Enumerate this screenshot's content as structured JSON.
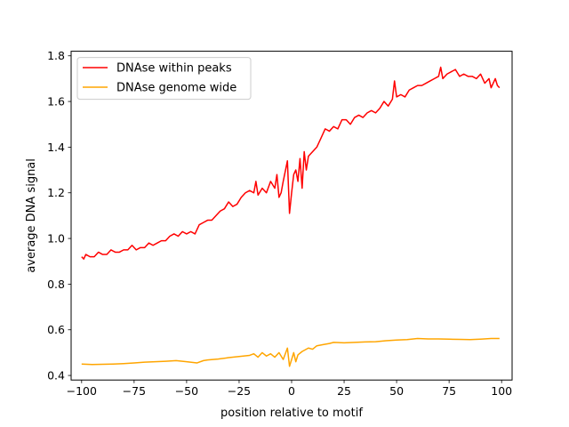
{
  "chart_data": {
    "type": "line",
    "title": "",
    "xlabel": "position relative to motif",
    "ylabel": "average DNA signal",
    "xlim": [
      -105,
      105
    ],
    "ylim": [
      0.38,
      1.82
    ],
    "xticks": [
      -100,
      -75,
      -50,
      -25,
      0,
      25,
      50,
      75,
      100
    ],
    "xtick_labels": [
      "−100",
      "−75",
      "−50",
      "−25",
      "0",
      "25",
      "50",
      "75",
      "100"
    ],
    "yticks": [
      0.4,
      0.6,
      0.8,
      1.0,
      1.2,
      1.4,
      1.6,
      1.8
    ],
    "ytick_labels": [
      "0.4",
      "0.6",
      "0.8",
      "1.0",
      "1.2",
      "1.4",
      "1.6",
      "1.8"
    ],
    "grid": false,
    "legend_position": "top-left",
    "series": [
      {
        "name": "DNAse within peaks",
        "color": "#ff0000",
        "points": [
          [
            -100,
            0.92
          ],
          [
            -99,
            0.91
          ],
          [
            -98,
            0.93
          ],
          [
            -96,
            0.92
          ],
          [
            -94,
            0.92
          ],
          [
            -92,
            0.94
          ],
          [
            -90,
            0.93
          ],
          [
            -88,
            0.93
          ],
          [
            -86,
            0.95
          ],
          [
            -84,
            0.94
          ],
          [
            -82,
            0.94
          ],
          [
            -80,
            0.95
          ],
          [
            -78,
            0.95
          ],
          [
            -76,
            0.97
          ],
          [
            -74,
            0.95
          ],
          [
            -72,
            0.96
          ],
          [
            -70,
            0.96
          ],
          [
            -68,
            0.98
          ],
          [
            -66,
            0.97
          ],
          [
            -64,
            0.98
          ],
          [
            -62,
            0.99
          ],
          [
            -60,
            0.99
          ],
          [
            -58,
            1.01
          ],
          [
            -56,
            1.02
          ],
          [
            -54,
            1.01
          ],
          [
            -52,
            1.03
          ],
          [
            -50,
            1.02
          ],
          [
            -48,
            1.03
          ],
          [
            -46,
            1.02
          ],
          [
            -44,
            1.06
          ],
          [
            -42,
            1.07
          ],
          [
            -40,
            1.08
          ],
          [
            -38,
            1.08
          ],
          [
            -36,
            1.1
          ],
          [
            -34,
            1.12
          ],
          [
            -32,
            1.13
          ],
          [
            -30,
            1.16
          ],
          [
            -28,
            1.14
          ],
          [
            -26,
            1.15
          ],
          [
            -24,
            1.18
          ],
          [
            -22,
            1.2
          ],
          [
            -20,
            1.21
          ],
          [
            -18,
            1.2
          ],
          [
            -17,
            1.25
          ],
          [
            -16,
            1.19
          ],
          [
            -14,
            1.22
          ],
          [
            -12,
            1.2
          ],
          [
            -10,
            1.25
          ],
          [
            -8,
            1.22
          ],
          [
            -7,
            1.28
          ],
          [
            -6,
            1.18
          ],
          [
            -5,
            1.2
          ],
          [
            -4,
            1.25
          ],
          [
            -2,
            1.34
          ],
          [
            -1,
            1.11
          ],
          [
            0,
            1.2
          ],
          [
            1,
            1.28
          ],
          [
            2,
            1.3
          ],
          [
            3,
            1.25
          ],
          [
            4,
            1.35
          ],
          [
            5,
            1.22
          ],
          [
            6,
            1.38
          ],
          [
            7,
            1.3
          ],
          [
            8,
            1.36
          ],
          [
            10,
            1.38
          ],
          [
            12,
            1.4
          ],
          [
            14,
            1.44
          ],
          [
            16,
            1.48
          ],
          [
            18,
            1.47
          ],
          [
            20,
            1.49
          ],
          [
            22,
            1.48
          ],
          [
            24,
            1.52
          ],
          [
            26,
            1.52
          ],
          [
            28,
            1.5
          ],
          [
            30,
            1.53
          ],
          [
            32,
            1.54
          ],
          [
            34,
            1.53
          ],
          [
            36,
            1.55
          ],
          [
            38,
            1.56
          ],
          [
            40,
            1.55
          ],
          [
            42,
            1.57
          ],
          [
            44,
            1.6
          ],
          [
            46,
            1.58
          ],
          [
            48,
            1.61
          ],
          [
            49,
            1.69
          ],
          [
            50,
            1.62
          ],
          [
            52,
            1.63
          ],
          [
            54,
            1.62
          ],
          [
            56,
            1.65
          ],
          [
            58,
            1.66
          ],
          [
            60,
            1.67
          ],
          [
            62,
            1.67
          ],
          [
            64,
            1.68
          ],
          [
            66,
            1.69
          ],
          [
            68,
            1.7
          ],
          [
            70,
            1.71
          ],
          [
            71,
            1.75
          ],
          [
            72,
            1.7
          ],
          [
            74,
            1.72
          ],
          [
            76,
            1.73
          ],
          [
            78,
            1.74
          ],
          [
            80,
            1.71
          ],
          [
            82,
            1.72
          ],
          [
            84,
            1.71
          ],
          [
            86,
            1.71
          ],
          [
            88,
            1.7
          ],
          [
            90,
            1.72
          ],
          [
            92,
            1.68
          ],
          [
            94,
            1.7
          ],
          [
            95,
            1.66
          ],
          [
            96,
            1.68
          ],
          [
            97,
            1.7
          ],
          [
            98,
            1.67
          ],
          [
            99,
            1.66
          ]
        ]
      },
      {
        "name": "DNAse genome wide",
        "color": "#ffa500",
        "points": [
          [
            -100,
            0.45
          ],
          [
            -95,
            0.448
          ],
          [
            -90,
            0.449
          ],
          [
            -85,
            0.45
          ],
          [
            -80,
            0.452
          ],
          [
            -75,
            0.455
          ],
          [
            -70,
            0.458
          ],
          [
            -65,
            0.46
          ],
          [
            -60,
            0.462
          ],
          [
            -55,
            0.465
          ],
          [
            -50,
            0.46
          ],
          [
            -45,
            0.455
          ],
          [
            -42,
            0.465
          ],
          [
            -40,
            0.468
          ],
          [
            -35,
            0.472
          ],
          [
            -30,
            0.478
          ],
          [
            -25,
            0.483
          ],
          [
            -20,
            0.488
          ],
          [
            -18,
            0.495
          ],
          [
            -16,
            0.48
          ],
          [
            -14,
            0.5
          ],
          [
            -12,
            0.485
          ],
          [
            -10,
            0.495
          ],
          [
            -8,
            0.48
          ],
          [
            -6,
            0.5
          ],
          [
            -4,
            0.47
          ],
          [
            -2,
            0.52
          ],
          [
            -1,
            0.44
          ],
          [
            0,
            0.47
          ],
          [
            1,
            0.5
          ],
          [
            2,
            0.46
          ],
          [
            3,
            0.49
          ],
          [
            5,
            0.505
          ],
          [
            8,
            0.52
          ],
          [
            10,
            0.515
          ],
          [
            12,
            0.53
          ],
          [
            15,
            0.535
          ],
          [
            18,
            0.54
          ],
          [
            20,
            0.545
          ],
          [
            25,
            0.543
          ],
          [
            30,
            0.545
          ],
          [
            35,
            0.547
          ],
          [
            40,
            0.548
          ],
          [
            45,
            0.552
          ],
          [
            50,
            0.555
          ],
          [
            55,
            0.557
          ],
          [
            60,
            0.562
          ],
          [
            65,
            0.56
          ],
          [
            70,
            0.56
          ],
          [
            75,
            0.559
          ],
          [
            80,
            0.558
          ],
          [
            85,
            0.557
          ],
          [
            90,
            0.559
          ],
          [
            95,
            0.562
          ],
          [
            99,
            0.562
          ]
        ]
      }
    ]
  }
}
